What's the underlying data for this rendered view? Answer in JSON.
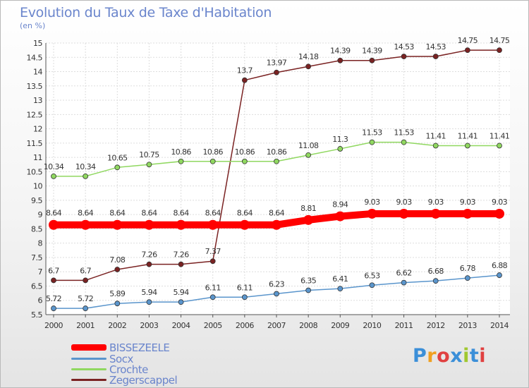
{
  "chart_data": {
    "type": "line",
    "title": "Evolution du Taux de Taxe d'Habitation",
    "ylabel": "(en %)",
    "xlabel": "",
    "x": [
      "2000",
      "2001",
      "2002",
      "2003",
      "2004",
      "2005",
      "2006",
      "2007",
      "2008",
      "2009",
      "2010",
      "2011",
      "2012",
      "2013",
      "2014"
    ],
    "yticks": [
      "5.5",
      "6",
      "6.5",
      "7",
      "7.5",
      "8",
      "8.5",
      "9",
      "9.5",
      "10",
      "10.5",
      "11",
      "11.5",
      "12",
      "12.5",
      "13",
      "13.5",
      "14",
      "14.5",
      "15"
    ],
    "ylim": [
      5.5,
      15
    ],
    "grid": true,
    "series": [
      {
        "name": "BISSEZEELE",
        "color": "#ff0000",
        "labels": [
          "8.64",
          "8.64",
          "8.64",
          "8.64",
          "8.64",
          "8.64",
          "8.64",
          "8.64",
          "8.81",
          "8.94",
          "9.03",
          "9.03",
          "9.03",
          "9.03",
          "9.03"
        ],
        "values": [
          8.64,
          8.64,
          8.64,
          8.64,
          8.64,
          8.64,
          8.64,
          8.64,
          8.81,
          8.94,
          9.03,
          9.03,
          9.03,
          9.03,
          9.03
        ]
      },
      {
        "name": "Socx",
        "color": "#5a95cc",
        "labels": [
          "5.72",
          "5.72",
          "5.89",
          "5.94",
          "5.94",
          "6.11",
          "6.11",
          "6.23",
          "6.35",
          "6.41",
          "6.53",
          "6.62",
          "6.68",
          "6.78",
          "6.88"
        ],
        "values": [
          5.72,
          5.72,
          5.89,
          5.94,
          5.94,
          6.11,
          6.11,
          6.23,
          6.35,
          6.41,
          6.53,
          6.62,
          6.68,
          6.78,
          6.88
        ]
      },
      {
        "name": "Crochte",
        "color": "#90d860",
        "labels": [
          "10.34",
          "10.34",
          "10.65",
          "10.75",
          "10.86",
          "10.86",
          "10.86",
          "10.86",
          "11.08",
          "11.3",
          "11.53",
          "11.53",
          "11.41",
          "11.41",
          "11.41"
        ],
        "values": [
          10.34,
          10.34,
          10.65,
          10.75,
          10.86,
          10.86,
          10.86,
          10.86,
          11.08,
          11.3,
          11.53,
          11.53,
          11.41,
          11.41,
          11.41
        ]
      },
      {
        "name": "Zegerscappel",
        "color": "#7a2222",
        "labels": [
          "6.7",
          "6.7",
          "7.08",
          "7.26",
          "7.26",
          "7.37",
          "13.7",
          "13.97",
          "14.18",
          "14.39",
          "14.39",
          "14.53",
          "14.53",
          "14.75",
          "14.75"
        ],
        "values": [
          6.7,
          6.7,
          7.08,
          7.26,
          7.26,
          7.37,
          13.7,
          13.97,
          14.18,
          14.39,
          14.39,
          14.53,
          14.53,
          14.75,
          14.75
        ]
      }
    ]
  },
  "logo": {
    "text": "Proxiti"
  }
}
